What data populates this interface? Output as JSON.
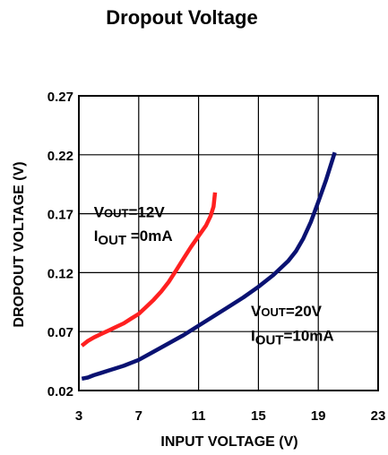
{
  "chart_data": {
    "type": "line",
    "title": "Dropout Voltage",
    "xlabel": "INPUT VOLTAGE (V)",
    "ylabel": "DROPOUT VOLTAGE (V)",
    "xlim": [
      3,
      23
    ],
    "ylim": [
      0.02,
      0.27
    ],
    "x_ticks": [
      "3",
      "7",
      "11",
      "15",
      "19",
      "23"
    ],
    "y_ticks": [
      "0.02",
      "0.07",
      "0.12",
      "0.17",
      "0.22",
      "0.27"
    ],
    "grid": true,
    "series": [
      {
        "color": "#ff2020",
        "x": [
          3.2,
          3.6,
          4.0,
          4.5,
          5.0,
          5.5,
          6.0,
          6.5,
          7.0,
          7.5,
          8.0,
          8.5,
          9.0,
          9.5,
          10.0,
          10.5,
          11.0,
          11.5,
          11.8,
          12.0,
          12.1
        ],
        "y": [
          0.058,
          0.062,
          0.065,
          0.068,
          0.071,
          0.074,
          0.077,
          0.081,
          0.085,
          0.091,
          0.097,
          0.104,
          0.112,
          0.122,
          0.132,
          0.142,
          0.151,
          0.16,
          0.168,
          0.176,
          0.188
        ]
      },
      {
        "color": "#0a1272",
        "x": [
          3.2,
          3.6,
          4.0,
          4.5,
          5.0,
          5.5,
          6.0,
          7.0,
          8.0,
          9.0,
          10.0,
          11.0,
          12.0,
          13.0,
          14.0,
          15.0,
          16.0,
          17.0,
          17.5,
          18.0,
          18.5,
          19.0,
          19.5,
          20.1
        ],
        "y": [
          0.03,
          0.031,
          0.033,
          0.035,
          0.037,
          0.039,
          0.041,
          0.046,
          0.053,
          0.06,
          0.067,
          0.075,
          0.083,
          0.091,
          0.099,
          0.108,
          0.118,
          0.13,
          0.138,
          0.149,
          0.163,
          0.18,
          0.198,
          0.222
        ]
      }
    ],
    "annotations": [
      {
        "series": 0,
        "main": "V",
        "sub": "OUT",
        "rest": "=12V",
        "x": 4.0,
        "y": 0.167
      },
      {
        "series": 0,
        "main": "I",
        "sub": "OUT",
        "rest": " =0mA",
        "x": 4.0,
        "y": 0.147
      },
      {
        "series": 1,
        "main": "V",
        "sub": "OUT",
        "rest": "=20V",
        "x": 14.5,
        "y": 0.083
      },
      {
        "series": 1,
        "main": "I",
        "sub": "OUT",
        "rest": "=10mA",
        "x": 14.5,
        "y": 0.062
      }
    ]
  }
}
